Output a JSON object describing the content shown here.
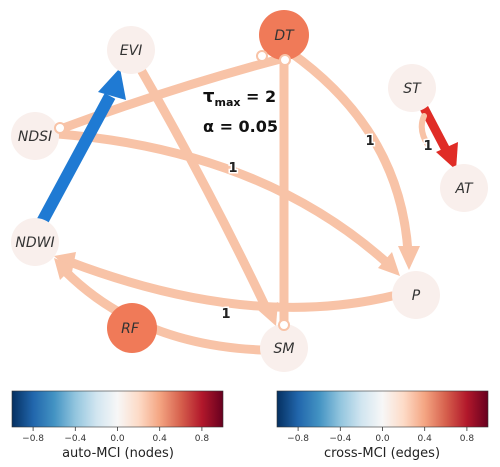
{
  "colors": {
    "node_zero": "#f9efec",
    "node_strong": "#f07a58",
    "edge_weak": "#f8c3a7",
    "edge_red": "#e02c26",
    "edge_blue": "#1f7ad3",
    "cmap": [
      "#053061",
      "#2166ac",
      "#4393c3",
      "#92c5de",
      "#d1e5f0",
      "#f7f7f7",
      "#fddbc7",
      "#f4a582",
      "#d6604d",
      "#b2182b",
      "#67001f"
    ]
  },
  "nodes": [
    {
      "id": "EVI",
      "label": "EVI",
      "auto": 0.0
    },
    {
      "id": "DT",
      "label": "DT",
      "auto": 0.45
    },
    {
      "id": "ST",
      "label": "ST",
      "auto": 0.0
    },
    {
      "id": "NDSI",
      "label": "NDSI",
      "auto": 0.0
    },
    {
      "id": "AT",
      "label": "AT",
      "auto": 0.0
    },
    {
      "id": "NDWI",
      "label": "NDWI",
      "auto": 0.0
    },
    {
      "id": "P",
      "label": "P",
      "auto": 0.0
    },
    {
      "id": "RF",
      "label": "RF",
      "auto": 0.45
    },
    {
      "id": "SM",
      "label": "SM",
      "auto": 0.0
    }
  ],
  "edges": [
    {
      "from": "DT",
      "to": "NDSI",
      "value": 0.2,
      "label": "",
      "arrow": false,
      "open_circle": true
    },
    {
      "from": "DT",
      "to": "P",
      "value": 0.2,
      "label": "1",
      "arrow": true,
      "open_circle": true
    },
    {
      "from": "DT",
      "to": "SM",
      "value": 0.2,
      "label": "",
      "arrow": false,
      "open_circle": true
    },
    {
      "from": "EVI",
      "to": "SM",
      "value": 0.2,
      "label": "",
      "arrow": true,
      "open_circle": false
    },
    {
      "from": "NDSI",
      "to": "P",
      "value": 0.2,
      "label": "1",
      "arrow": true,
      "open_circle": true
    },
    {
      "from": "NDWI",
      "to": "EVI",
      "value": -0.7,
      "label": "",
      "arrow": true,
      "open_circle": false
    },
    {
      "from": "P",
      "to": "NDWI",
      "value": 0.2,
      "label": "1",
      "arrow": true,
      "open_circle": false
    },
    {
      "from": "SM",
      "to": "NDWI",
      "value": 0.2,
      "label": "",
      "arrow": true,
      "open_circle": false
    },
    {
      "from": "ST",
      "to": "AT",
      "value": 0.7,
      "label": "1",
      "arrow": true,
      "open_circle": false
    }
  ],
  "params": {
    "tau_symbol": "τ",
    "tau_sub": "max",
    "tau_value": " = 2",
    "alpha": "α = 0.05"
  },
  "colorbars": [
    {
      "title": "auto-MCI (nodes)",
      "ticks": [
        "−0.8",
        "−0.4",
        "0.0",
        "0.4",
        "0.8"
      ],
      "tick_values": [
        -0.8,
        -0.4,
        0.0,
        0.4,
        0.8
      ],
      "range": [
        -1,
        1
      ]
    },
    {
      "title": "cross-MCI (edges)",
      "ticks": [
        "−0.8",
        "−0.4",
        "0.0",
        "0.4",
        "0.8"
      ],
      "tick_values": [
        -0.8,
        -0.4,
        0.0,
        0.4,
        0.8
      ],
      "range": [
        -1,
        1
      ]
    }
  ]
}
